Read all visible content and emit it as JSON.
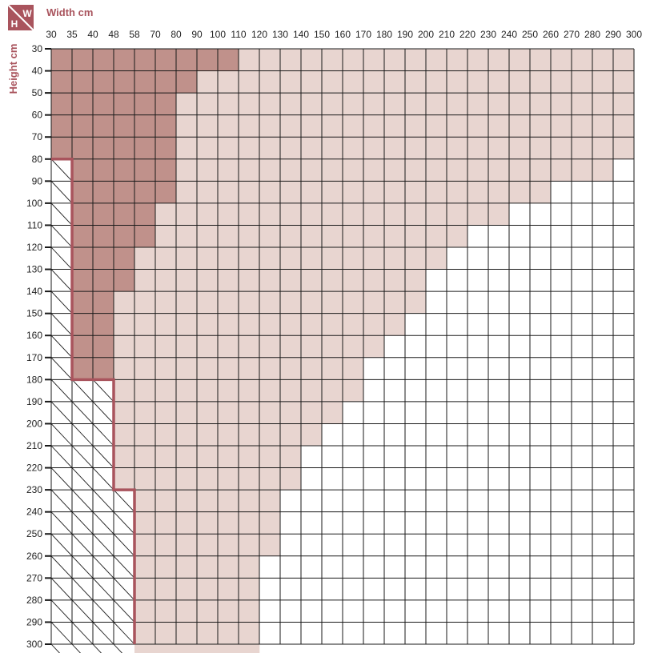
{
  "chart_data": {
    "type": "heatmap",
    "badge": {
      "width_letter": "W",
      "height_letter": "H"
    },
    "xlabel": "Width cm",
    "ylabel": "Height cm",
    "widths": [
      30,
      35,
      40,
      48,
      58,
      70,
      80,
      90,
      100,
      110,
      120,
      130,
      140,
      150,
      160,
      170,
      180,
      190,
      200,
      210,
      220,
      230,
      240,
      250,
      260,
      270,
      280,
      290,
      300
    ],
    "heights": [
      30,
      40,
      50,
      60,
      70,
      80,
      90,
      100,
      110,
      120,
      130,
      140,
      150,
      160,
      170,
      180,
      190,
      200,
      210,
      220,
      230,
      240,
      250,
      260,
      270,
      280,
      290,
      300
    ],
    "dark_zone_max_width_by_height": [
      110,
      90,
      80,
      80,
      80,
      80,
      80,
      70,
      70,
      58,
      58,
      48,
      48,
      48,
      48,
      0,
      0,
      0,
      0,
      0,
      0,
      0,
      0,
      0,
      0,
      0,
      0,
      0
    ],
    "light_zone_max_width_by_height": [
      300,
      300,
      300,
      300,
      300,
      290,
      260,
      240,
      220,
      210,
      200,
      200,
      190,
      180,
      170,
      170,
      160,
      150,
      140,
      140,
      130,
      130,
      130,
      120,
      120,
      120,
      120,
      120
    ],
    "hatched_zone_max_width_by_height": [
      0,
      0,
      0,
      0,
      0,
      35,
      35,
      35,
      35,
      35,
      35,
      35,
      35,
      35,
      35,
      48,
      48,
      48,
      48,
      48,
      58,
      58,
      58,
      58,
      58,
      58,
      58,
      58
    ],
    "colors": {
      "dark_zone": "#c0918b",
      "light_zone": "#e8d5d0",
      "boundary_line": "#a9545d",
      "grid": "#1a1a1a",
      "title": "#a9545d",
      "badge": "#a9545d"
    }
  }
}
